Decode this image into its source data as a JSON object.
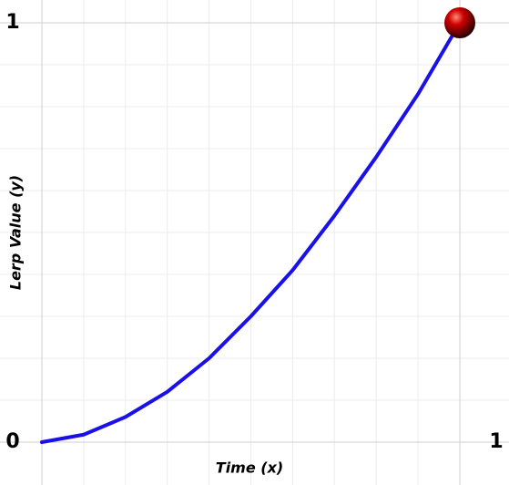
{
  "chart_data": {
    "type": "line",
    "x_label": "Time (x)",
    "y_label": "Lerp Value (y)",
    "x": [
      0,
      0.1,
      0.2,
      0.3,
      0.4,
      0.5,
      0.6,
      0.7,
      0.8,
      0.9,
      1
    ],
    "series": [
      {
        "color": "#1a10e8",
        "values": [
          0,
          0.018,
          0.06,
          0.12,
          0.2,
          0.3,
          0.41,
          0.54,
          0.68,
          0.83,
          1
        ]
      }
    ],
    "marker_color": "#d00000",
    "xlim": [
      0,
      1
    ],
    "ylim": [
      0,
      1
    ],
    "xticks": [
      1
    ],
    "yticks": [
      0,
      1
    ],
    "xgrid": [
      0,
      0.1,
      0.2,
      0.3,
      0.4,
      0.5,
      0.6,
      0.7,
      0.8,
      0.9,
      1
    ],
    "ygrid": [
      0,
      0.1,
      0.2,
      0.3,
      0.4,
      0.5,
      0.6,
      0.7,
      0.8,
      0.9,
      1
    ],
    "grid": true
  }
}
